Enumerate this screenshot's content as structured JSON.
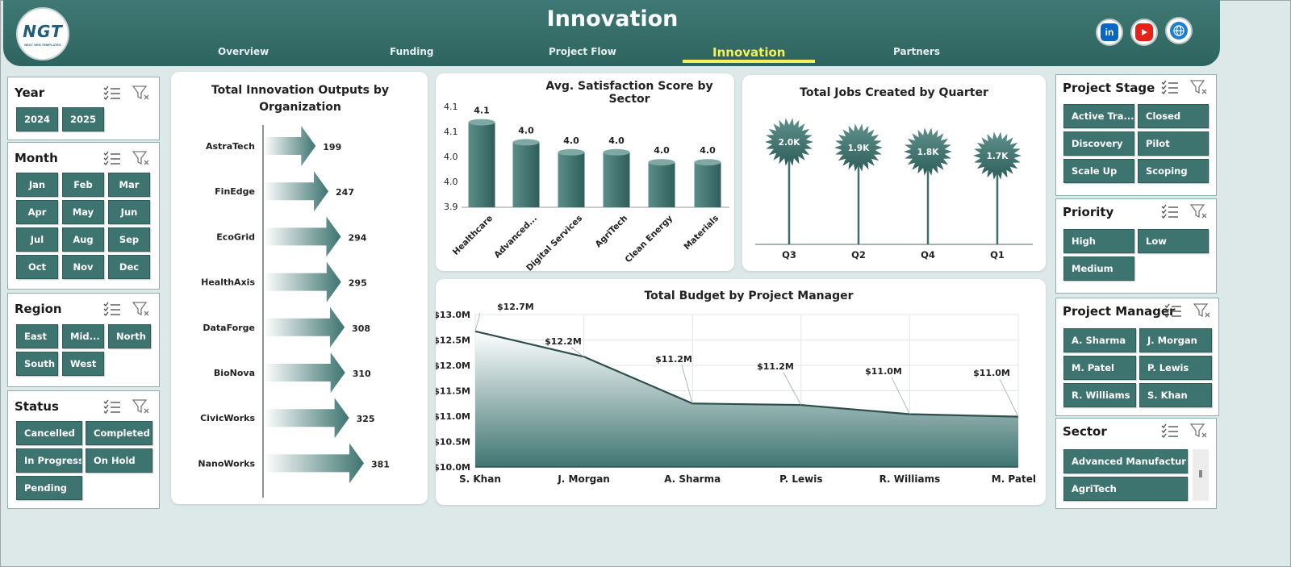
{
  "header": {
    "title": "Innovation",
    "logo_text": "NGT",
    "logo_sub": "NEXT GEN TEMPLATES",
    "tabs": [
      {
        "label": "Overview"
      },
      {
        "label": "Funding"
      },
      {
        "label": "Project Flow"
      },
      {
        "label": "Innovation"
      },
      {
        "label": "Partners"
      }
    ],
    "active_tab": "Innovation",
    "social": [
      {
        "icon": "linkedin-icon",
        "label": "in",
        "color": "#0a66c2"
      },
      {
        "icon": "youtube-icon",
        "color": "#e62117"
      },
      {
        "icon": "globe-icon",
        "color": "#1d7fd6"
      }
    ]
  },
  "colors": {
    "accent": "#3e7470",
    "header": "#2e6460",
    "highlight": "#f4f05a",
    "background": "#dde9e8"
  },
  "slicers": {
    "year": {
      "title": "Year",
      "items": [
        "2024",
        "2025"
      ]
    },
    "month": {
      "title": "Month",
      "items": [
        "Jan",
        "Feb",
        "Mar",
        "Apr",
        "May",
        "Jun",
        "Jul",
        "Aug",
        "Sep",
        "Oct",
        "Nov",
        "Dec"
      ]
    },
    "region": {
      "title": "Region",
      "items": [
        "East",
        "Mid...",
        "North",
        "South",
        "West"
      ]
    },
    "status": {
      "title": "Status",
      "items": [
        "Cancelled",
        "Completed",
        "In Progress",
        "On Hold",
        "Pending"
      ]
    },
    "project_stage": {
      "title": "Project Stage",
      "items": [
        "Active Tra...",
        "Closed",
        "Discovery",
        "Pilot",
        "Scale Up",
        "Scoping"
      ]
    },
    "priority": {
      "title": "Priority",
      "items": [
        "High",
        "Low",
        "Medium"
      ]
    },
    "project_manager": {
      "title": "Project Manager",
      "items": [
        "A. Sharma",
        "J. Morgan",
        "M. Patel",
        "P. Lewis",
        "R. Williams",
        "S. Khan"
      ]
    },
    "sector": {
      "title": "Sector",
      "items": [
        "Advanced Manufacturing",
        "AgriTech"
      ]
    }
  },
  "chart_data": [
    {
      "type": "bar",
      "orientation": "horizontal",
      "title": "Total Innovation Outputs by Organization",
      "categories": [
        "AstraTech",
        "FinEdge",
        "EcoGrid",
        "HealthAxis",
        "DataForge",
        "BioNova",
        "CivicWorks",
        "NanoWorks"
      ],
      "values": [
        199,
        247,
        294,
        295,
        308,
        310,
        325,
        381
      ]
    },
    {
      "type": "bar",
      "title": "Avg. Satisfaction Score by Sector",
      "categories": [
        "Healthcare",
        "Advanced...",
        "Digital Services",
        "AgriTech",
        "Clean Energy",
        "Materials"
      ],
      "values": [
        4.1,
        4.0,
        4.0,
        4.0,
        4.0,
        4.0
      ],
      "plot_values": [
        4.07,
        4.03,
        4.01,
        4.01,
        3.99,
        3.99
      ],
      "value_labels": [
        "4.1",
        "4.0",
        "4.0",
        "4.0",
        "4.0",
        "4.0"
      ],
      "y_ticks": [
        "4.1",
        "4.1",
        "4.0",
        "4.0",
        "3.9"
      ],
      "ylim": [
        3.9,
        4.1
      ]
    },
    {
      "type": "scatter",
      "title": "Total Jobs Created by Quarter",
      "categories": [
        "Q3",
        "Q2",
        "Q4",
        "Q1"
      ],
      "values": [
        2000,
        1900,
        1800,
        1700
      ],
      "value_labels": [
        "2.0K",
        "1.9K",
        "1.8K",
        "1.7K"
      ]
    },
    {
      "type": "area",
      "title": "Total Budget by Project Manager",
      "categories": [
        "S. Khan",
        "J. Morgan",
        "A. Sharma",
        "P. Lewis",
        "R. Williams",
        "M. Patel"
      ],
      "values": [
        12.67,
        12.17,
        11.25,
        11.22,
        11.04,
        10.99
      ],
      "value_labels": [
        "$12.7M",
        "$12.2M",
        "$11.2M",
        "$11.2M",
        "$11.0M",
        "$11.0M"
      ],
      "y_ticks": [
        "$10.0M",
        "$10.5M",
        "$11.0M",
        "$11.5M",
        "$12.0M",
        "$12.5M",
        "$13.0M"
      ],
      "ylim": [
        10.0,
        13.0
      ],
      "grid": true
    }
  ]
}
